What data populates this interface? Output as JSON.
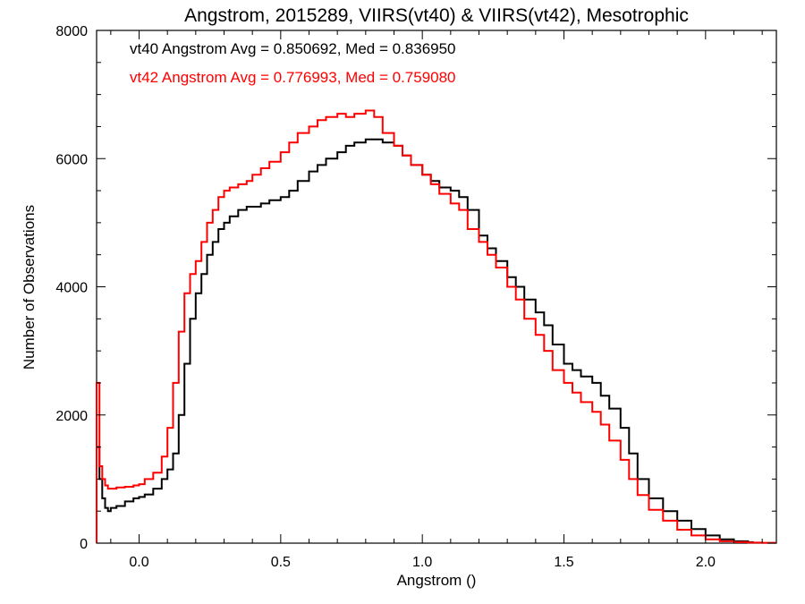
{
  "chart_data": {
    "type": "line",
    "title": "Angstrom, 2015289, VIIRS(vt40) & VIIRS(vt42), Mesotrophic",
    "xlabel": "Angstrom ()",
    "ylabel": "Number of Observations",
    "xlim": [
      -0.15,
      2.25
    ],
    "ylim": [
      0,
      8000
    ],
    "x_ticks": [
      0.0,
      0.5,
      1.0,
      1.5,
      2.0
    ],
    "x_tick_labels": [
      "0.0",
      "0.5",
      "1.0",
      "1.5",
      "2.0"
    ],
    "y_ticks": [
      0,
      2000,
      4000,
      6000,
      8000
    ],
    "y_tick_labels": [
      "0",
      "2000",
      "4000",
      "6000",
      "8000"
    ],
    "grid": false,
    "style": "step",
    "annotations": [
      {
        "text": "vt40 Angstrom Avg = 0.850692, Med = 0.836950",
        "color": "#000000"
      },
      {
        "text": "vt42 Angstrom Avg = 0.776993, Med = 0.759080",
        "color": "#ff0000"
      }
    ],
    "series": [
      {
        "color": "#000000",
        "x": [
          -0.15,
          -0.14,
          -0.13,
          -0.12,
          -0.11,
          -0.1,
          -0.08,
          -0.05,
          -0.02,
          0.0,
          0.02,
          0.05,
          0.08,
          0.1,
          0.12,
          0.14,
          0.16,
          0.18,
          0.2,
          0.22,
          0.24,
          0.26,
          0.28,
          0.3,
          0.32,
          0.35,
          0.38,
          0.4,
          0.43,
          0.46,
          0.5,
          0.53,
          0.56,
          0.6,
          0.63,
          0.66,
          0.7,
          0.73,
          0.76,
          0.8,
          0.83,
          0.86,
          0.9,
          0.93,
          0.96,
          1.0,
          1.03,
          1.06,
          1.1,
          1.13,
          1.16,
          1.2,
          1.23,
          1.26,
          1.3,
          1.33,
          1.36,
          1.4,
          1.43,
          1.46,
          1.5,
          1.53,
          1.56,
          1.6,
          1.63,
          1.66,
          1.7,
          1.73,
          1.76,
          1.8,
          1.85,
          1.9,
          1.95,
          2.0,
          2.05,
          2.1,
          2.15
        ],
        "values": [
          1500,
          1000,
          700,
          550,
          500,
          550,
          580,
          650,
          700,
          720,
          760,
          850,
          1000,
          1150,
          1400,
          2000,
          2800,
          3500,
          3900,
          4200,
          4500,
          4700,
          4900,
          5000,
          5100,
          5200,
          5250,
          5250,
          5300,
          5350,
          5400,
          5500,
          5650,
          5800,
          5900,
          6000,
          6100,
          6200,
          6250,
          6300,
          6300,
          6250,
          6200,
          6050,
          5900,
          5750,
          5650,
          5550,
          5500,
          5400,
          5200,
          4800,
          4600,
          4400,
          4150,
          4000,
          3800,
          3600,
          3400,
          3100,
          2800,
          2700,
          2600,
          2500,
          2300,
          2100,
          1800,
          1400,
          1000,
          700,
          500,
          350,
          220,
          120,
          60,
          30,
          15
        ]
      },
      {
        "color": "#ff0000",
        "x": [
          -0.15,
          -0.14,
          -0.13,
          -0.12,
          -0.11,
          -0.1,
          -0.08,
          -0.05,
          -0.02,
          0.0,
          0.02,
          0.05,
          0.08,
          0.1,
          0.12,
          0.14,
          0.16,
          0.18,
          0.2,
          0.22,
          0.24,
          0.26,
          0.28,
          0.3,
          0.32,
          0.35,
          0.38,
          0.4,
          0.43,
          0.46,
          0.5,
          0.53,
          0.56,
          0.6,
          0.63,
          0.66,
          0.7,
          0.73,
          0.76,
          0.8,
          0.83,
          0.86,
          0.9,
          0.93,
          0.96,
          1.0,
          1.03,
          1.06,
          1.1,
          1.13,
          1.16,
          1.2,
          1.23,
          1.26,
          1.3,
          1.33,
          1.36,
          1.4,
          1.43,
          1.46,
          1.5,
          1.53,
          1.56,
          1.6,
          1.63,
          1.66,
          1.7,
          1.73,
          1.76,
          1.8,
          1.85,
          1.9,
          1.95,
          2.0,
          2.05,
          2.1,
          2.15,
          2.2,
          2.25
        ],
        "values": [
          2500,
          1200,
          1000,
          900,
          850,
          850,
          870,
          880,
          900,
          920,
          1000,
          1100,
          1350,
          1800,
          2500,
          3300,
          3900,
          4200,
          4400,
          4700,
          5000,
          5200,
          5400,
          5500,
          5550,
          5600,
          5650,
          5750,
          5850,
          5950,
          6100,
          6250,
          6400,
          6500,
          6600,
          6650,
          6700,
          6650,
          6700,
          6750,
          6650,
          6400,
          6200,
          6050,
          5900,
          5750,
          5600,
          5450,
          5300,
          5200,
          4900,
          4700,
          4500,
          4300,
          4000,
          3800,
          3500,
          3250,
          3000,
          2700,
          2500,
          2350,
          2200,
          2050,
          1850,
          1600,
          1300,
          1000,
          750,
          520,
          350,
          210,
          120,
          60,
          30,
          15,
          8,
          5,
          5
        ]
      }
    ]
  }
}
